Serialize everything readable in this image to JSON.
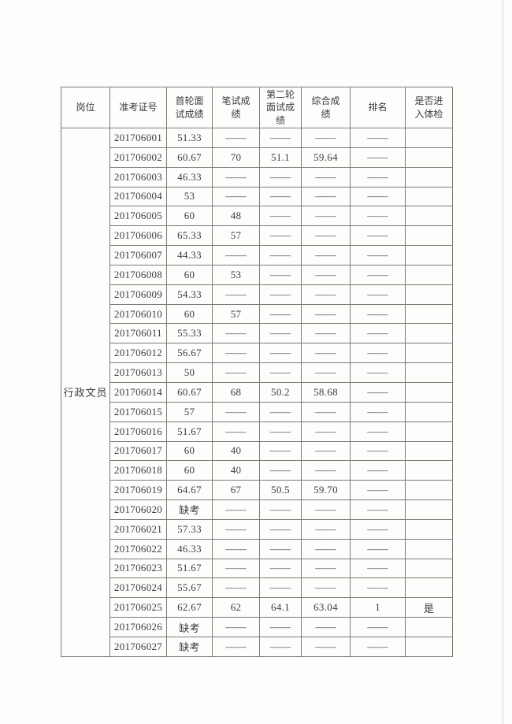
{
  "colors": {
    "page_background": "#fdfdfc",
    "table_border": "#7b7b78",
    "text": "#3c3c3c",
    "scan_edge": "#dcdcda"
  },
  "table": {
    "headers": [
      "岗位",
      "准考证号",
      "首轮面\n试成绩",
      "笔试成\n绩",
      "第二轮\n面试成\n绩",
      "综合成\n绩",
      "排名",
      "是否进\n入体检"
    ],
    "position_label": "行政文员",
    "rows": [
      {
        "id": "201706001",
        "first": "51.33",
        "written": "——",
        "second": "——",
        "composite": "——",
        "rank": "——",
        "enter": ""
      },
      {
        "id": "201706002",
        "first": "60.67",
        "written": "70",
        "second": "51.1",
        "composite": "59.64",
        "rank": "——",
        "enter": ""
      },
      {
        "id": "201706003",
        "first": "46.33",
        "written": "——",
        "second": "——",
        "composite": "——",
        "rank": "——",
        "enter": ""
      },
      {
        "id": "201706004",
        "first": "53",
        "written": "——",
        "second": "——",
        "composite": "——",
        "rank": "——",
        "enter": ""
      },
      {
        "id": "201706005",
        "first": "60",
        "written": "48",
        "second": "——",
        "composite": "——",
        "rank": "——",
        "enter": ""
      },
      {
        "id": "201706006",
        "first": "65.33",
        "written": "57",
        "second": "——",
        "composite": "——",
        "rank": "——",
        "enter": ""
      },
      {
        "id": "201706007",
        "first": "44.33",
        "written": "——",
        "second": "——",
        "composite": "——",
        "rank": "——",
        "enter": ""
      },
      {
        "id": "201706008",
        "first": "60",
        "written": "53",
        "second": "——",
        "composite": "——",
        "rank": "——",
        "enter": ""
      },
      {
        "id": "201706009",
        "first": "54.33",
        "written": "——",
        "second": "——",
        "composite": "——",
        "rank": "——",
        "enter": ""
      },
      {
        "id": "201706010",
        "first": "60",
        "written": "57",
        "second": "——",
        "composite": "——",
        "rank": "——",
        "enter": ""
      },
      {
        "id": "201706011",
        "first": "55.33",
        "written": "——",
        "second": "——",
        "composite": "——",
        "rank": "——",
        "enter": ""
      },
      {
        "id": "201706012",
        "first": "56.67",
        "written": "——",
        "second": "——",
        "composite": "——",
        "rank": "——",
        "enter": ""
      },
      {
        "id": "201706013",
        "first": "50",
        "written": "——",
        "second": "——",
        "composite": "——",
        "rank": "——",
        "enter": ""
      },
      {
        "id": "201706014",
        "first": "60.67",
        "written": "68",
        "second": "50.2",
        "composite": "58.68",
        "rank": "——",
        "enter": ""
      },
      {
        "id": "201706015",
        "first": "57",
        "written": "——",
        "second": "——",
        "composite": "——",
        "rank": "——",
        "enter": ""
      },
      {
        "id": "201706016",
        "first": "51.67",
        "written": "——",
        "second": "——",
        "composite": "——",
        "rank": "——",
        "enter": ""
      },
      {
        "id": "201706017",
        "first": "60",
        "written": "40",
        "second": "——",
        "composite": "——",
        "rank": "——",
        "enter": ""
      },
      {
        "id": "201706018",
        "first": "60",
        "written": "40",
        "second": "——",
        "composite": "——",
        "rank": "——",
        "enter": ""
      },
      {
        "id": "201706019",
        "first": "64.67",
        "written": "67",
        "second": "50.5",
        "composite": "59.70",
        "rank": "——",
        "enter": ""
      },
      {
        "id": "201706020",
        "first": "缺考",
        "written": "——",
        "second": "——",
        "composite": "——",
        "rank": "——",
        "enter": ""
      },
      {
        "id": "201706021",
        "first": "57.33",
        "written": "——",
        "second": "——",
        "composite": "——",
        "rank": "——",
        "enter": ""
      },
      {
        "id": "201706022",
        "first": "46.33",
        "written": "——",
        "second": "——",
        "composite": "——",
        "rank": "——",
        "enter": ""
      },
      {
        "id": "201706023",
        "first": "51.67",
        "written": "——",
        "second": "——",
        "composite": "——",
        "rank": "——",
        "enter": ""
      },
      {
        "id": "201706024",
        "first": "55.67",
        "written": "——",
        "second": "——",
        "composite": "——",
        "rank": "——",
        "enter": ""
      },
      {
        "id": "201706025",
        "first": "62.67",
        "written": "62",
        "second": "64.1",
        "composite": "63.04",
        "rank": "1",
        "enter": "是"
      },
      {
        "id": "201706026",
        "first": "缺考",
        "written": "——",
        "second": "——",
        "composite": "——",
        "rank": "——",
        "enter": ""
      },
      {
        "id": "201706027",
        "first": "缺考",
        "written": "——",
        "second": "——",
        "composite": "——",
        "rank": "——",
        "enter": ""
      }
    ]
  }
}
